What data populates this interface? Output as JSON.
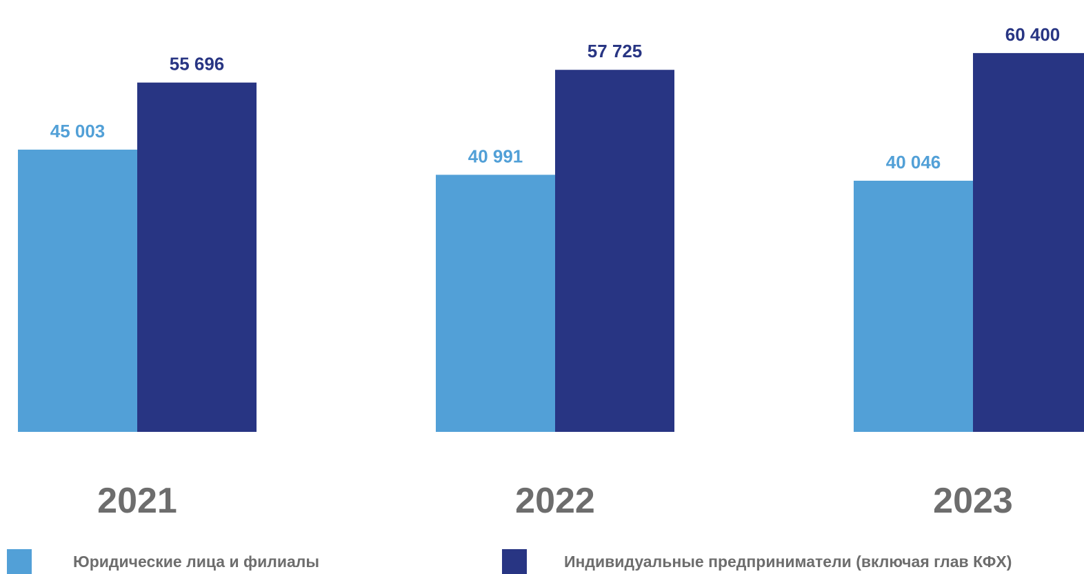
{
  "chart_data": {
    "type": "bar",
    "categories": [
      "2021",
      "2022",
      "2023"
    ],
    "series": [
      {
        "name": "Юридические лица и филиалы",
        "values": [
          45003,
          40991,
          40046
        ],
        "labels": [
          "45 003",
          "40 991",
          "40 046"
        ],
        "color": "#52a0d7"
      },
      {
        "name": "Индивидуальные предприниматели (включая глав КФХ)",
        "values": [
          55696,
          57725,
          60400
        ],
        "labels": [
          "55 696",
          "57 725",
          "60 400"
        ],
        "color": "#283583"
      }
    ],
    "ylim": [
      0,
      66000
    ],
    "grid": false,
    "legend_position": "bottom"
  }
}
